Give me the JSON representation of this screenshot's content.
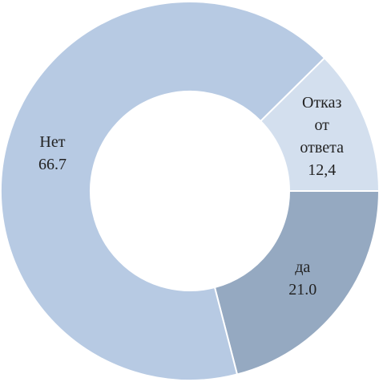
{
  "chart_data": {
    "type": "donut",
    "categories": [
      "да",
      "Нет",
      "Отказ от ответа"
    ],
    "values": [
      21.0,
      66.7,
      12.4
    ],
    "value_labels": [
      "21.0",
      "66.7",
      "12,4"
    ],
    "colors": [
      "#95a9c1",
      "#b7cae3",
      "#d3dfee"
    ]
  }
}
